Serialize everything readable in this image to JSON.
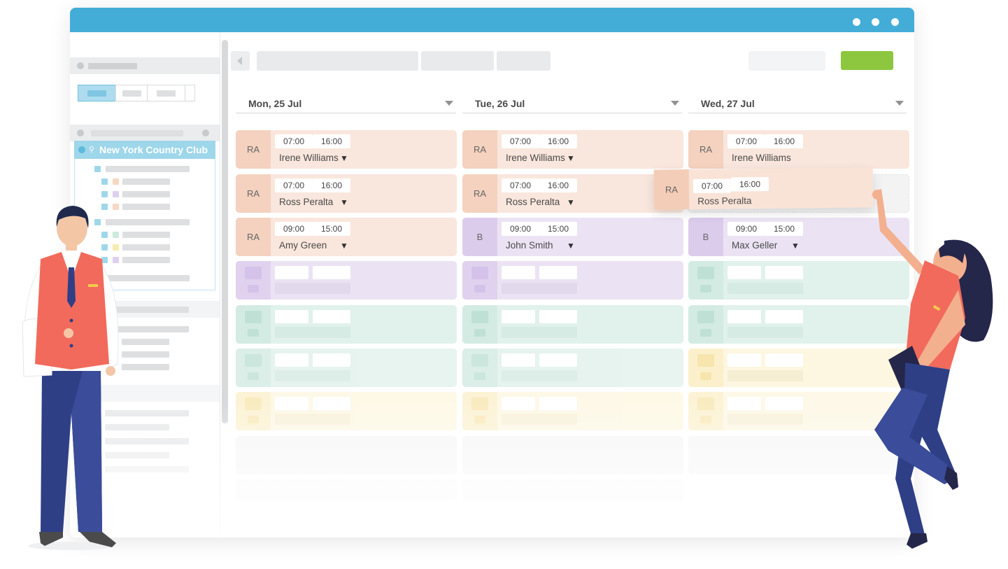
{
  "sidebar": {
    "location_label": "New York Country Club"
  },
  "days": [
    {
      "label": "Mon, 25 Jul"
    },
    {
      "label": "Tue, 26 Jul"
    },
    {
      "label": "Wed, 27 Jul"
    }
  ],
  "shifts": {
    "mon": [
      {
        "role": "RA",
        "start": "07:00",
        "end": "16:00",
        "name": "Irene Williams"
      },
      {
        "role": "RA",
        "start": "07:00",
        "end": "16:00",
        "name": "Ross Peralta"
      },
      {
        "role": "RA",
        "start": "09:00",
        "end": "15:00",
        "name": "Amy Green"
      }
    ],
    "tue": [
      {
        "role": "RA",
        "start": "07:00",
        "end": "16:00",
        "name": "Irene Williams"
      },
      {
        "role": "RA",
        "start": "07:00",
        "end": "16:00",
        "name": "Ross Peralta"
      },
      {
        "role": "B",
        "start": "09:00",
        "end": "15:00",
        "name": "John Smith"
      }
    ],
    "wed": [
      {
        "role": "RA",
        "start": "07:00",
        "end": "16:00",
        "name": "Irene Williams"
      },
      {
        "role": "B",
        "start": "09:00",
        "end": "15:00",
        "name": "Max Geller"
      }
    ]
  },
  "dragging_shift": {
    "role": "RA",
    "start": "07:00",
    "end": "16:00",
    "name": "Ross Peralta"
  },
  "dropdown_glyph": "▼"
}
